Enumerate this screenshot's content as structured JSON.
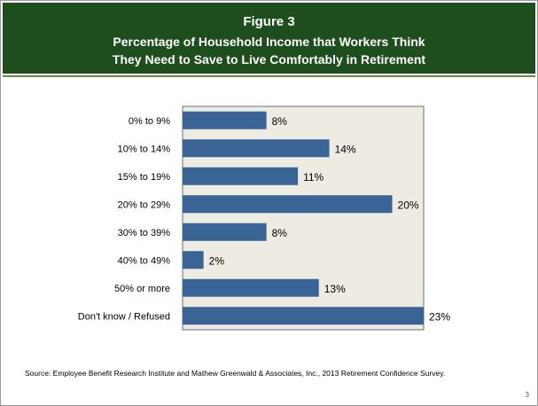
{
  "header": {
    "figure": "Figure 3",
    "title_line1": "Percentage of Household Income that Workers Think",
    "title_line2": "They Need to Save to Live Comfortably in Retirement"
  },
  "source": "Source:  Employee Benefit Research Institute and Mathew Greenwald & Associates, Inc., 2013 Retirement Confidence Survey.",
  "page_number": "3",
  "colors": {
    "header_bg": "#1e4d1e",
    "plot_bg": "#eeebe3",
    "bar": "#3a6496"
  },
  "chart_data": {
    "type": "bar",
    "orientation": "horizontal",
    "title": "Percentage of Household Income that Workers Think They Need to Save to Live Comfortably in Retirement",
    "categories": [
      "0% to 9%",
      "10% to 14%",
      "15% to 19%",
      "20% to 29%",
      "30% to 39%",
      "40% to 49%",
      "50% or more",
      "Don't know / Refused"
    ],
    "values": [
      8,
      14,
      11,
      20,
      8,
      2,
      13,
      23
    ],
    "value_labels": [
      "8%",
      "14%",
      "11%",
      "20%",
      "8%",
      "2%",
      "13%",
      "23%"
    ],
    "xlim": [
      0,
      23
    ],
    "xlabel": "",
    "ylabel": "",
    "grid": false,
    "legend": "none"
  }
}
